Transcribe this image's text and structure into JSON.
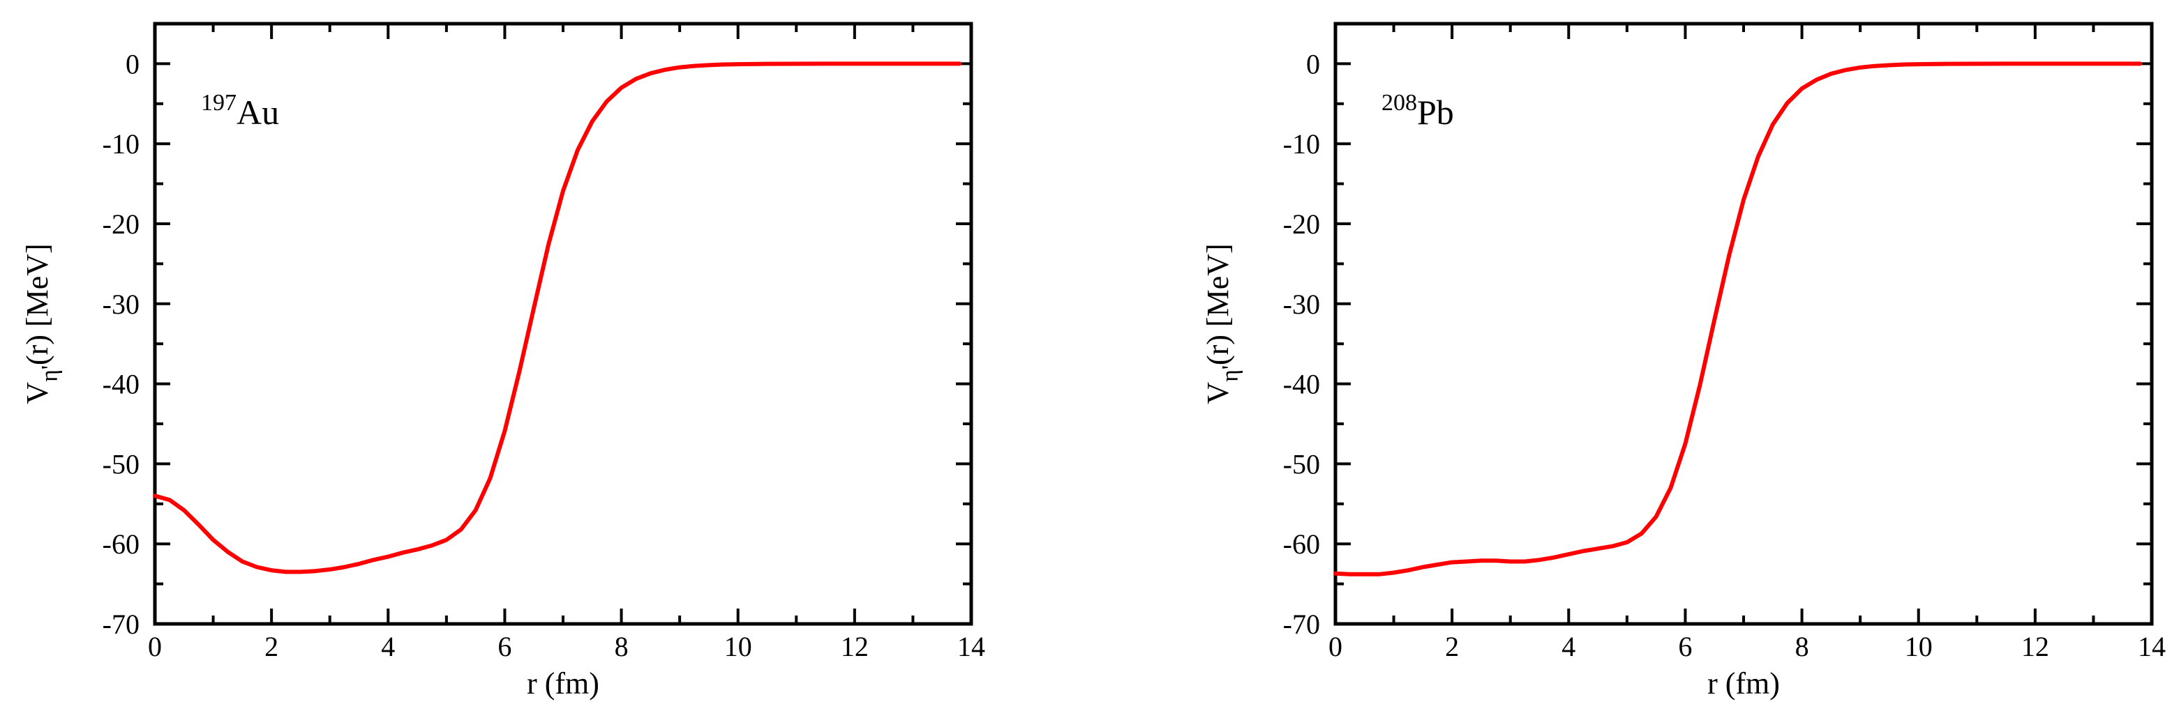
{
  "chart_data": [
    {
      "type": "line",
      "nucleus": {
        "mass": "197",
        "symbol": "Au"
      },
      "xlabel": "r (fm)",
      "ylabel": {
        "main": "V",
        "sub": "η'",
        "rest": "(r)  [MeV]"
      },
      "xlim": [
        0,
        14
      ],
      "ylim": [
        -70,
        5
      ],
      "x_ticks": [
        0,
        2,
        4,
        6,
        8,
        10,
        12,
        14
      ],
      "y_ticks": [
        0,
        -10,
        -20,
        -30,
        -40,
        -50,
        -60,
        -70
      ],
      "x_tick_labels": [
        "0",
        "2",
        "4",
        "6",
        "8",
        "10",
        "12",
        "14"
      ],
      "y_tick_labels": [
        "0",
        "-10",
        "-20",
        "-30",
        "-40",
        "-50",
        "-60",
        "-70"
      ],
      "grid": false,
      "line_color": "#ff0000",
      "series": [
        {
          "x": [
            0,
            0.25,
            0.5,
            0.75,
            1.0,
            1.25,
            1.5,
            1.75,
            2.0,
            2.25,
            2.5,
            2.75,
            3.0,
            3.25,
            3.5,
            3.75,
            4.0,
            4.25,
            4.5,
            4.75,
            5.0,
            5.25,
            5.5,
            5.75,
            6.0,
            6.25,
            6.5,
            6.75,
            7.0,
            7.25,
            7.5,
            7.75,
            8.0,
            8.25,
            8.5,
            8.75,
            9.0,
            9.25,
            9.5,
            9.75,
            10.0,
            10.5,
            11.0,
            11.5,
            12.0,
            13.0,
            13.8
          ],
          "y": [
            -54.0,
            -54.5,
            -55.8,
            -57.6,
            -59.5,
            -61.0,
            -62.2,
            -62.9,
            -63.3,
            -63.5,
            -63.5,
            -63.4,
            -63.2,
            -62.9,
            -62.5,
            -62.0,
            -61.6,
            -61.1,
            -60.7,
            -60.2,
            -59.5,
            -58.2,
            -55.8,
            -51.8,
            -45.9,
            -38.5,
            -30.5,
            -22.6,
            -15.9,
            -10.8,
            -7.2,
            -4.7,
            -3.0,
            -1.9,
            -1.2,
            -0.75,
            -0.45,
            -0.28,
            -0.17,
            -0.1,
            -0.06,
            -0.02,
            -0.01,
            0,
            0,
            0,
            0
          ]
        }
      ]
    },
    {
      "type": "line",
      "nucleus": {
        "mass": "208",
        "symbol": "Pb"
      },
      "xlabel": "r (fm)",
      "ylabel": {
        "main": "V",
        "sub": "η'",
        "rest": "(r)  [MeV]"
      },
      "xlim": [
        0,
        14
      ],
      "ylim": [
        -70,
        5
      ],
      "x_ticks": [
        0,
        2,
        4,
        6,
        8,
        10,
        12,
        14
      ],
      "y_ticks": [
        0,
        -10,
        -20,
        -30,
        -40,
        -50,
        -60,
        -70
      ],
      "x_tick_labels": [
        "0",
        "2",
        "4",
        "6",
        "8",
        "10",
        "12",
        "14"
      ],
      "y_tick_labels": [
        "0",
        "-10",
        "-20",
        "-30",
        "-40",
        "-50",
        "-60",
        "-70"
      ],
      "grid": false,
      "line_color": "#ff0000",
      "series": [
        {
          "x": [
            0,
            0.25,
            0.5,
            0.75,
            1.0,
            1.25,
            1.5,
            1.75,
            2.0,
            2.25,
            2.5,
            2.75,
            3.0,
            3.25,
            3.5,
            3.75,
            4.0,
            4.25,
            4.5,
            4.75,
            5.0,
            5.25,
            5.5,
            5.75,
            6.0,
            6.25,
            6.5,
            6.75,
            7.0,
            7.25,
            7.5,
            7.75,
            8.0,
            8.25,
            8.5,
            8.75,
            9.0,
            9.25,
            9.5,
            9.75,
            10.0,
            10.5,
            11.0,
            11.5,
            12.0,
            13.0,
            13.8
          ],
          "y": [
            -63.7,
            -63.8,
            -63.8,
            -63.8,
            -63.6,
            -63.3,
            -62.9,
            -62.6,
            -62.3,
            -62.2,
            -62.1,
            -62.1,
            -62.2,
            -62.2,
            -62.0,
            -61.7,
            -61.3,
            -60.9,
            -60.6,
            -60.3,
            -59.8,
            -58.7,
            -56.6,
            -53.0,
            -47.5,
            -40.2,
            -32.0,
            -24.0,
            -17.0,
            -11.6,
            -7.6,
            -4.9,
            -3.1,
            -2.0,
            -1.25,
            -0.78,
            -0.47,
            -0.29,
            -0.18,
            -0.1,
            -0.06,
            -0.02,
            -0.01,
            0,
            0,
            0,
            0
          ]
        }
      ]
    }
  ]
}
